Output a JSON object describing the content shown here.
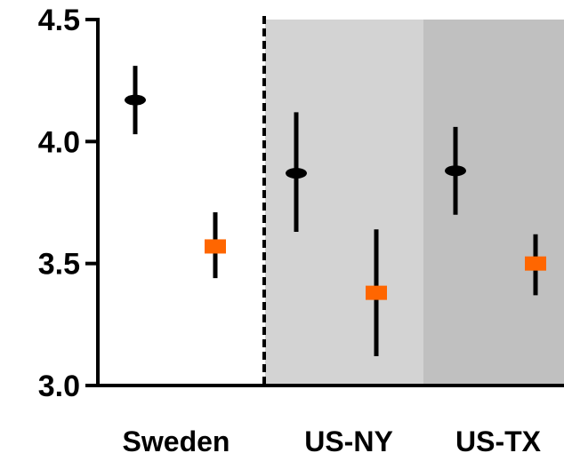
{
  "chart_data": {
    "type": "scatter",
    "title": "",
    "xlabel": "",
    "ylabel": "",
    "ylim": [
      3.0,
      4.5
    ],
    "yticks": [
      "3.0",
      "3.5",
      "4.0",
      "4.5"
    ],
    "categories": [
      "Sweden",
      "US-NY",
      "US-TX"
    ],
    "grid": false,
    "legend": "none",
    "region_colors": [
      "#ffffff",
      "#d3d3d3",
      "#c0c0c0"
    ],
    "series": [
      {
        "marker": "black-circle",
        "color": "#000000",
        "values": [
          4.17,
          3.87,
          3.88
        ],
        "lower": [
          4.03,
          3.63,
          3.7
        ],
        "upper": [
          4.31,
          4.12,
          4.06
        ]
      },
      {
        "marker": "orange-square",
        "color": "#ff6600",
        "values": [
          3.57,
          3.38,
          3.5
        ],
        "lower": [
          3.44,
          3.12,
          3.37
        ],
        "upper": [
          3.71,
          3.64,
          3.62
        ]
      }
    ]
  }
}
